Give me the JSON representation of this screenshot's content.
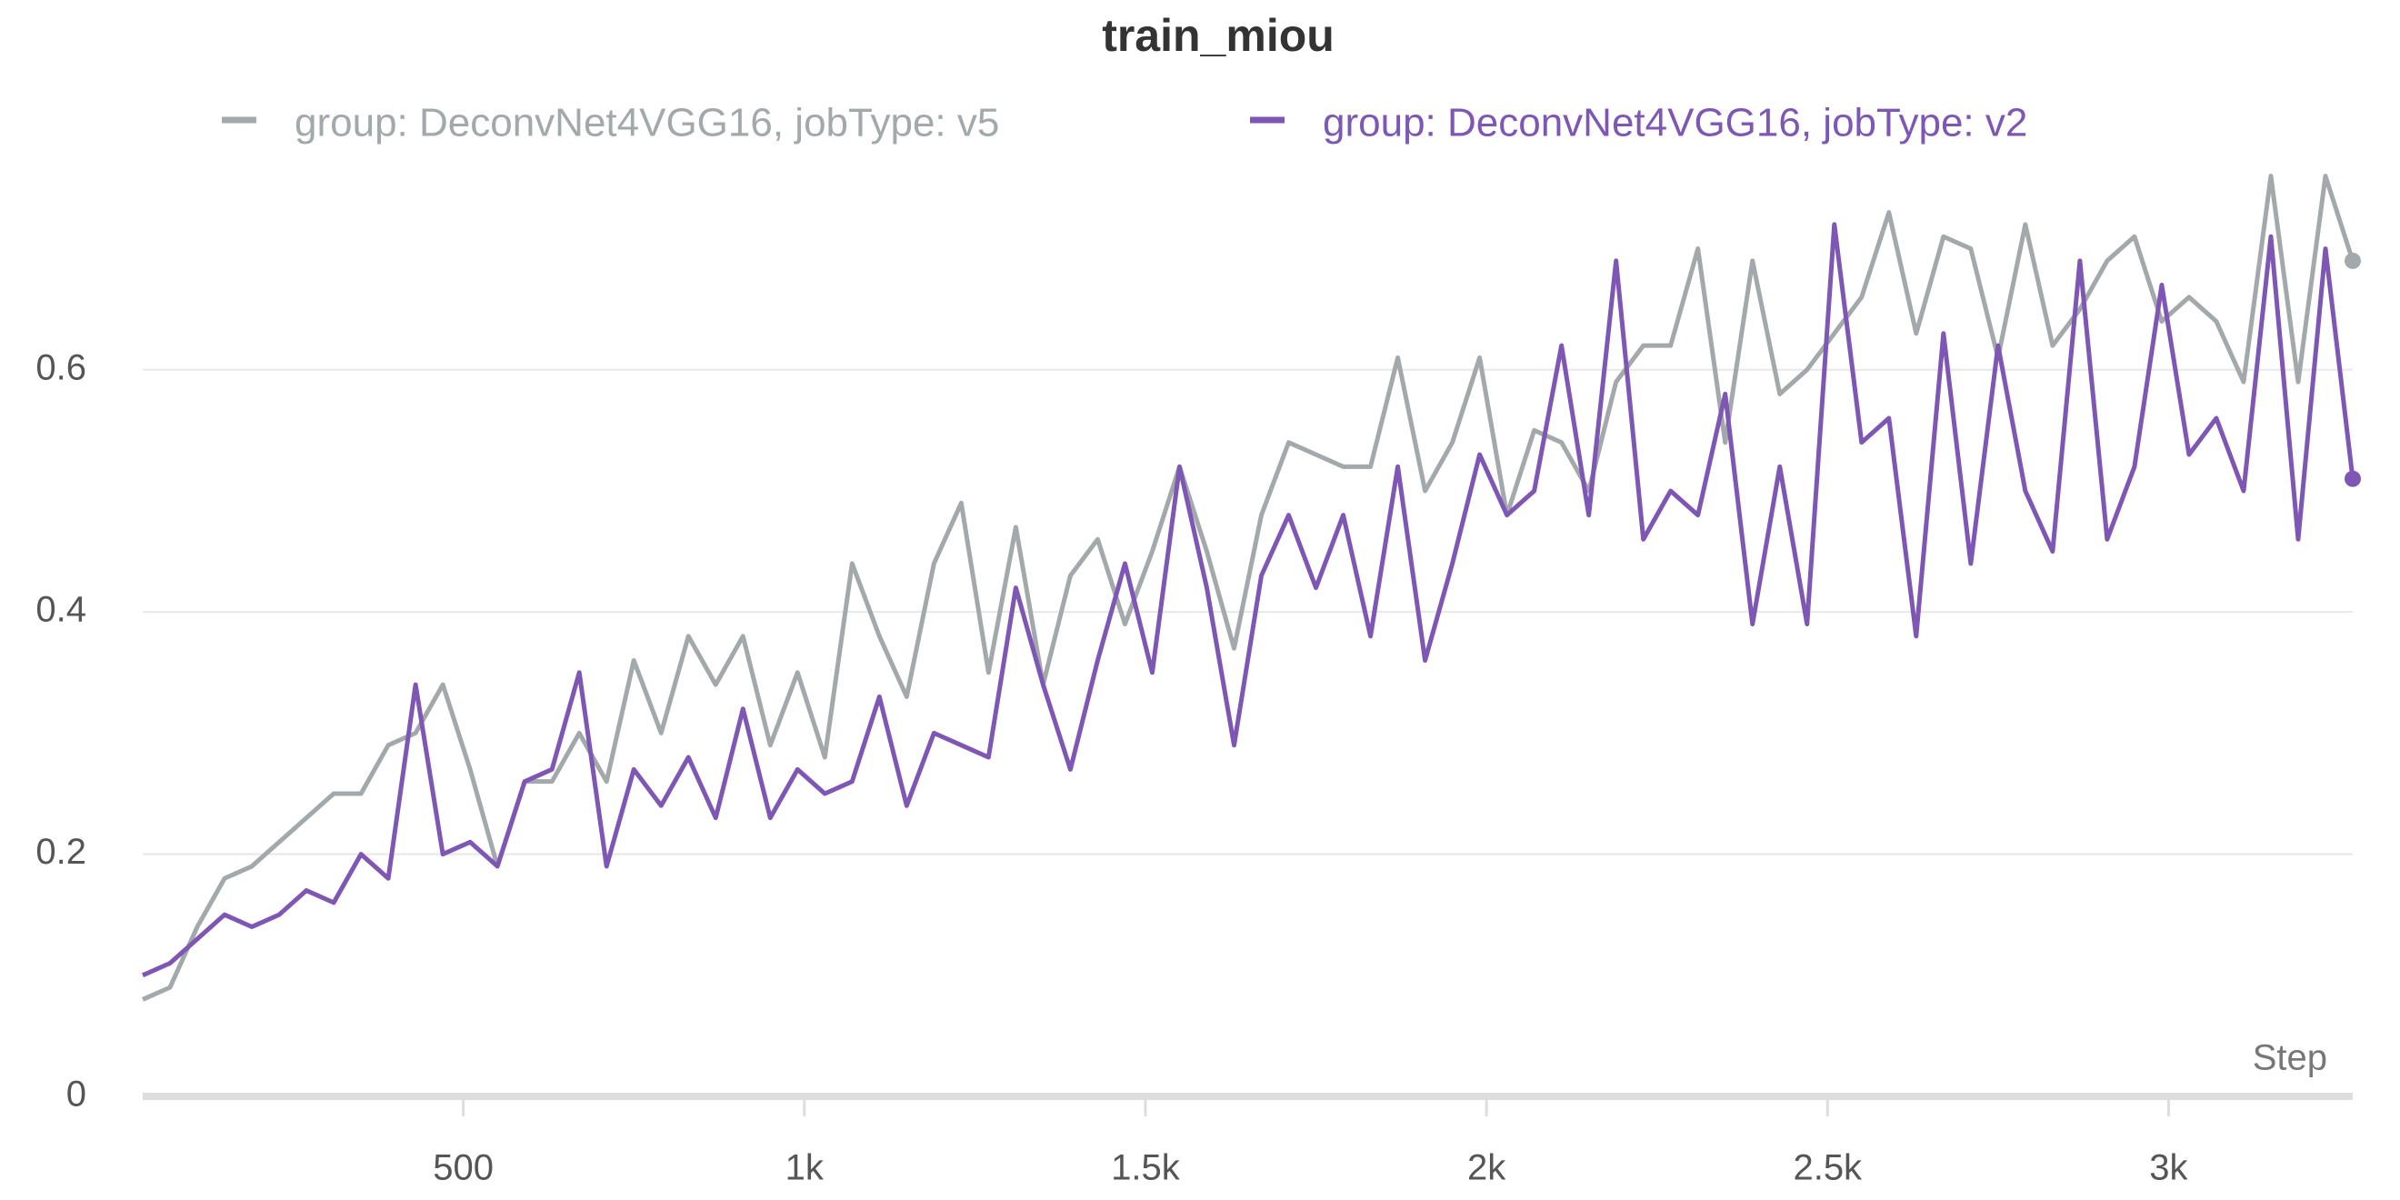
{
  "chart_data": {
    "type": "line",
    "title": "train_miou",
    "x_label": "Step",
    "x": [
      30,
      70,
      110,
      150,
      190,
      230,
      270,
      310,
      350,
      390,
      430,
      470,
      510,
      550,
      590,
      630,
      670,
      710,
      750,
      790,
      830,
      870,
      910,
      950,
      990,
      1030,
      1070,
      1110,
      1150,
      1190,
      1230,
      1270,
      1310,
      1350,
      1390,
      1430,
      1470,
      1510,
      1550,
      1590,
      1630,
      1670,
      1710,
      1750,
      1790,
      1830,
      1870,
      1910,
      1950,
      1990,
      2030,
      2070,
      2110,
      2150,
      2190,
      2230,
      2270,
      2310,
      2350,
      2390,
      2430,
      2470,
      2510,
      2550,
      2590,
      2630,
      2670,
      2710,
      2750,
      2790,
      2830,
      2870,
      2910,
      2950,
      2990,
      3030,
      3070,
      3110,
      3150,
      3190,
      3230,
      3270
    ],
    "series": [
      {
        "name": "group: DeconvNet4VGG16, jobType: v5",
        "color": "#a3a8ab",
        "values": [
          0.08,
          0.09,
          0.14,
          0.18,
          0.19,
          0.21,
          0.23,
          0.25,
          0.25,
          0.29,
          0.3,
          0.34,
          0.27,
          0.19,
          0.26,
          0.26,
          0.3,
          0.26,
          0.36,
          0.3,
          0.38,
          0.34,
          0.38,
          0.29,
          0.35,
          0.28,
          0.44,
          0.38,
          0.33,
          0.44,
          0.49,
          0.35,
          0.47,
          0.34,
          0.43,
          0.46,
          0.39,
          0.45,
          0.52,
          0.45,
          0.37,
          0.48,
          0.54,
          0.53,
          0.52,
          0.52,
          0.61,
          0.5,
          0.54,
          0.61,
          0.48,
          0.55,
          0.54,
          0.5,
          0.59,
          0.62,
          0.62,
          0.7,
          0.54,
          0.69,
          0.58,
          0.6,
          0.63,
          0.66,
          0.73,
          0.63,
          0.71,
          0.7,
          0.61,
          0.72,
          0.62,
          0.65,
          0.69,
          0.71,
          0.64,
          0.66,
          0.64,
          0.59,
          0.76,
          0.59,
          0.76,
          0.69
        ]
      },
      {
        "name": "group: DeconvNet4VGG16, jobType: v2",
        "color": "#7e57b5",
        "values": [
          0.1,
          0.11,
          0.13,
          0.15,
          0.14,
          0.15,
          0.17,
          0.16,
          0.2,
          0.18,
          0.34,
          0.2,
          0.21,
          0.19,
          0.26,
          0.27,
          0.35,
          0.19,
          0.27,
          0.24,
          0.28,
          0.23,
          0.32,
          0.23,
          0.27,
          0.25,
          0.26,
          0.33,
          0.24,
          0.3,
          0.29,
          0.28,
          0.42,
          0.34,
          0.27,
          0.36,
          0.44,
          0.35,
          0.52,
          0.42,
          0.29,
          0.43,
          0.48,
          0.42,
          0.48,
          0.38,
          0.52,
          0.36,
          0.44,
          0.53,
          0.48,
          0.5,
          0.62,
          0.48,
          0.69,
          0.46,
          0.5,
          0.48,
          0.58,
          0.39,
          0.52,
          0.39,
          0.72,
          0.54,
          0.56,
          0.38,
          0.63,
          0.44,
          0.62,
          0.5,
          0.45,
          0.69,
          0.46,
          0.52,
          0.67,
          0.53,
          0.56,
          0.5,
          0.71,
          0.46,
          0.7,
          0.51
        ]
      }
    ],
    "xlim": [
      30,
      3270
    ],
    "xticks": [
      500,
      {
        "value": 1000,
        "label": "1k"
      },
      {
        "value": 1500,
        "label": "1.5k"
      },
      {
        "value": 2000,
        "label": "2k"
      },
      {
        "value": 2500,
        "label": "2.5k"
      },
      {
        "value": 3000,
        "label": "3k"
      }
    ],
    "ylim": [
      0,
      0.78
    ],
    "yticks": [
      0,
      0.2,
      0.4,
      0.6
    ],
    "grid": true
  }
}
